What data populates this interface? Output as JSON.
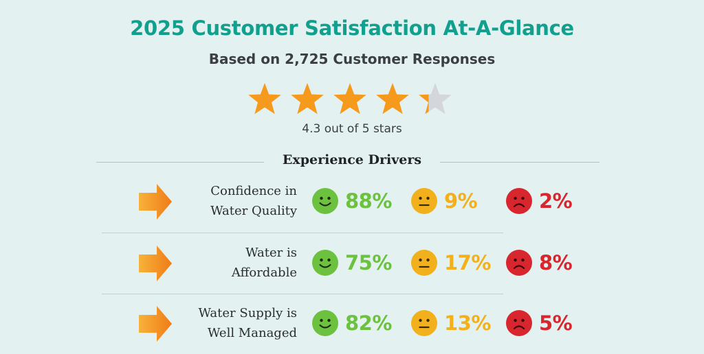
{
  "header": {
    "title": "2025 Customer Satisfaction At-A-Glance",
    "subtitle": "Based on 2,725 Customer Responses"
  },
  "rating": {
    "value": 4.3,
    "max": 5,
    "text": "4.3 out of 5 stars",
    "star_color": "#f59a1c",
    "empty_star_color": "#d3d7db"
  },
  "drivers": {
    "title": "Experience Drivers",
    "rows": [
      {
        "label_line1": "Confidence in",
        "label_line2": "Water Quality",
        "happy": "88%",
        "neutral": "9%",
        "sad": "2%"
      },
      {
        "label_line1": "Water is",
        "label_line2": "Affordable",
        "happy": "75%",
        "neutral": "17%",
        "sad": "8%"
      },
      {
        "label_line1": "Water Supply is",
        "label_line2": "Well Managed",
        "happy": "82%",
        "neutral": "13%",
        "sad": "5%"
      }
    ]
  },
  "colors": {
    "title": "#12a08e",
    "happy": "#6cc13f",
    "neutral": "#f2b11c",
    "sad": "#d7262e",
    "arrow": "#f38a1f"
  },
  "icons": [
    "star-icon",
    "arrow-right-icon",
    "happy-face-icon",
    "neutral-face-icon",
    "sad-face-icon"
  ]
}
